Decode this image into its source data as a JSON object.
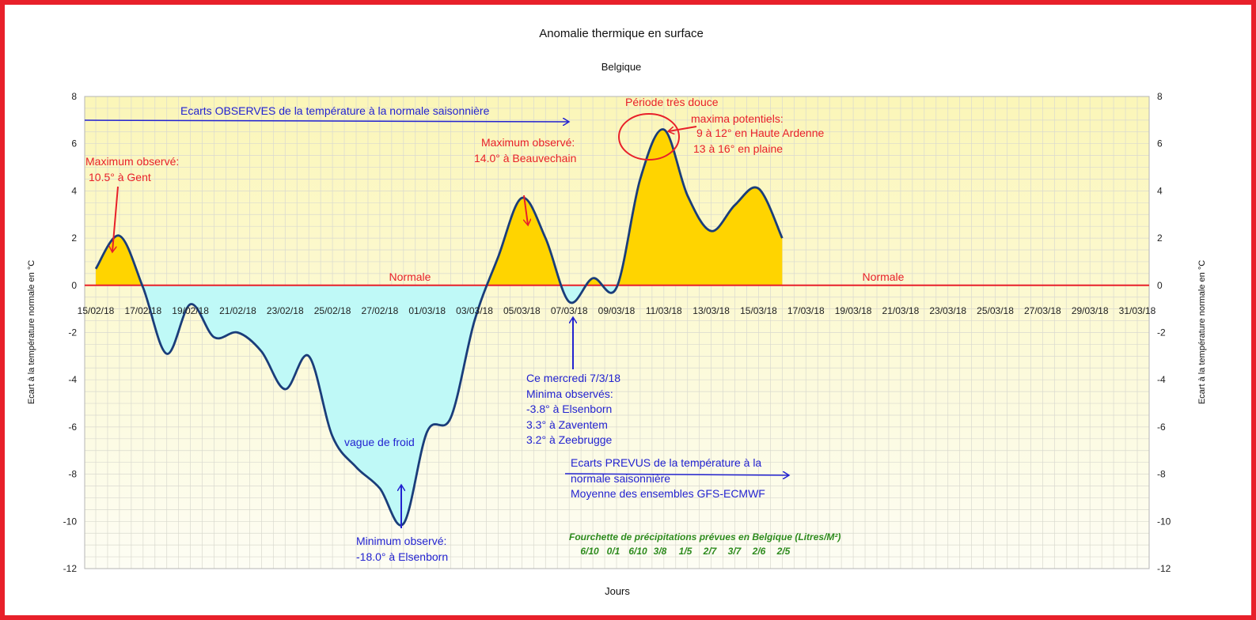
{
  "chart_data": {
    "type": "area",
    "title": "Anomalie thermique en surface",
    "subtitle": "Belgique",
    "xlabel": "Jours",
    "ylabel_left": "Ecart à la température normale en °C",
    "ylabel_right": "Ecart à la température normale en °C",
    "ylim": [
      -12,
      8
    ],
    "yticks": [
      8,
      6,
      4,
      2,
      0,
      -2,
      -4,
      -6,
      -8,
      -10,
      -12
    ],
    "xlim": [
      "15/02/18",
      "31/03/18"
    ],
    "xticks": [
      "15/02/18",
      "17/02/18",
      "19/02/18",
      "21/02/18",
      "23/02/18",
      "25/02/18",
      "27/02/18",
      "01/03/18",
      "03/03/18",
      "05/03/18",
      "07/03/18",
      "09/03/18",
      "11/03/18",
      "13/03/18",
      "15/03/18",
      "17/03/18",
      "19/03/18",
      "21/03/18",
      "23/03/18",
      "25/03/18",
      "27/03/18",
      "29/03/18",
      "31/03/18"
    ],
    "grid": true,
    "series": [
      {
        "x": [
          "15/02/18",
          "16/02/18",
          "17/02/18",
          "18/02/18",
          "19/02/18",
          "20/02/18",
          "21/02/18",
          "22/02/18",
          "23/02/18",
          "24/02/18",
          "25/02/18",
          "26/02/18",
          "27/02/18",
          "28/02/18",
          "01/03/18",
          "02/03/18",
          "03/03/18",
          "04/03/18",
          "05/03/18",
          "06/03/18",
          "07/03/18",
          "08/03/18",
          "09/03/18",
          "10/03/18",
          "11/03/18",
          "12/03/18",
          "13/03/18",
          "14/03/18",
          "15/03/18",
          "16/03/18"
        ],
        "values": [
          0.7,
          2.1,
          -0.1,
          -2.9,
          -0.8,
          -2.2,
          -2.0,
          -2.8,
          -4.4,
          -3.0,
          -6.4,
          -7.7,
          -8.6,
          -10.1,
          -6.2,
          -5.6,
          -1.5,
          1.2,
          3.7,
          2.0,
          -0.7,
          0.3,
          -0.1,
          4.5,
          6.6,
          3.8,
          2.3,
          3.4,
          4.1,
          2.0
        ]
      }
    ],
    "reference_lines": [
      {
        "label": "Normale",
        "y": 0,
        "color": "#e8202a"
      },
      {
        "label": "Normale",
        "y": 0,
        "color": "#e8202a"
      }
    ],
    "positive_fill": "#ffd400",
    "negative_fill": "#bff9f7",
    "line_color": "#1a3d7a",
    "annotations": {
      "observed_banner": "Ecarts OBSERVES de la température à la normale saisonnière",
      "max_gent": [
        "Maximum observé:",
        "10.5°  à Gent"
      ],
      "max_beauvechain": [
        "Maximum observé:",
        "14.0° à  Beauvechain"
      ],
      "periode_douce": "Période très douce",
      "maxima_potentiels": [
        "maxima potentiels:",
        "9 à 12° en Haute Ardenne",
        "13 à 16° en plaine"
      ],
      "vague_froid": "vague de froid",
      "min_elsenborn": [
        "Minimum observé:",
        "-18.0° à Elsenborn"
      ],
      "mercredi": [
        "Ce mercredi 7/3/18",
        "Minima observés:",
        "-3.8° à Elsenborn",
        "3.3° à Zaventem",
        "3.2° à Zeebrugge"
      ],
      "prevus": [
        "Ecarts PREVUS de la température à la",
        "normale saisonnière",
        "Moyenne des ensembles GFS-ECMWF"
      ],
      "precip_title": "Fourchette de précipitations prévues en Belgique (Litres/M²)",
      "precip_values": [
        "6/10",
        "0/1",
        "6/10",
        "3/8",
        "1/5",
        "2/7",
        "3/7",
        "2/6",
        "2/5"
      ]
    }
  }
}
